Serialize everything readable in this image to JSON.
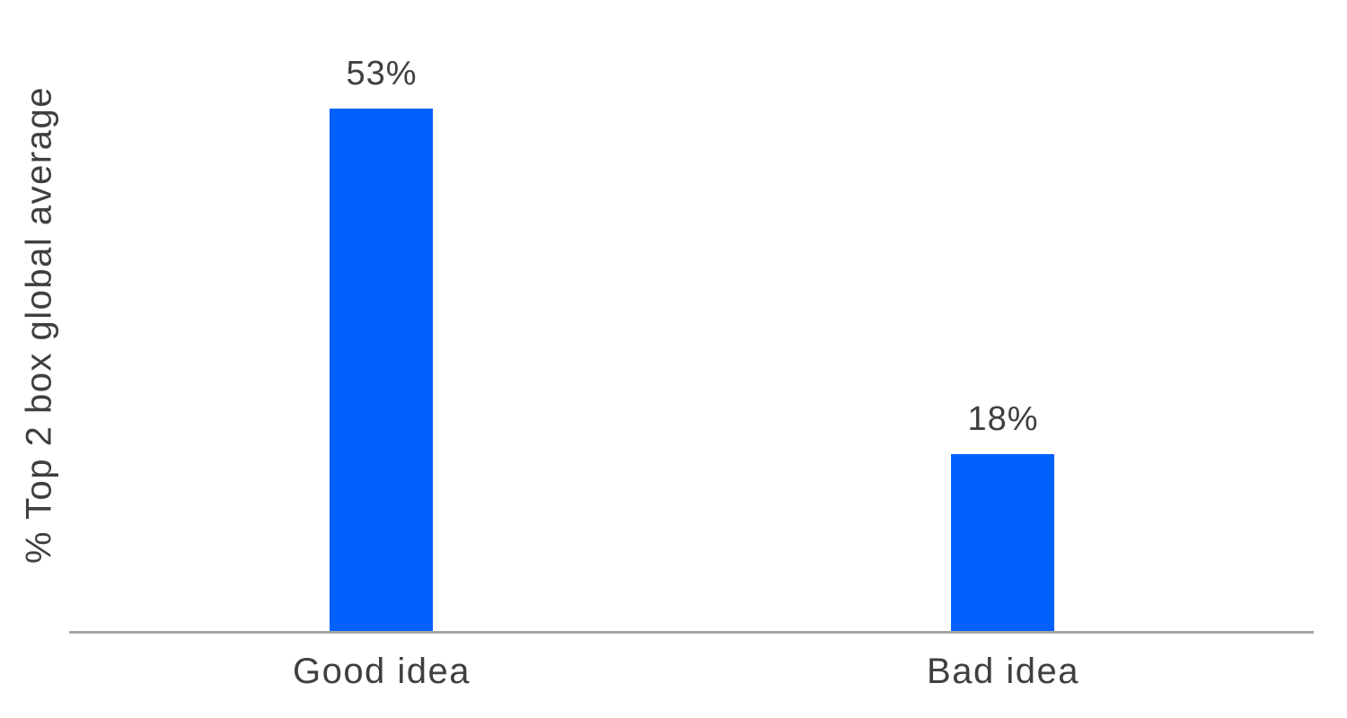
{
  "chart_data": {
    "type": "bar",
    "categories": [
      "Good idea",
      "Bad idea"
    ],
    "values": [
      53,
      18
    ],
    "value_labels": [
      "53%",
      "18%"
    ],
    "ylabel": "% Top 2 box global average",
    "ylim": [
      0,
      64
    ],
    "grid": false,
    "legend": false,
    "bar_color": "#0061fd",
    "axis_line_color": "#a6a6a6",
    "text_color": "#3f3f3f"
  }
}
